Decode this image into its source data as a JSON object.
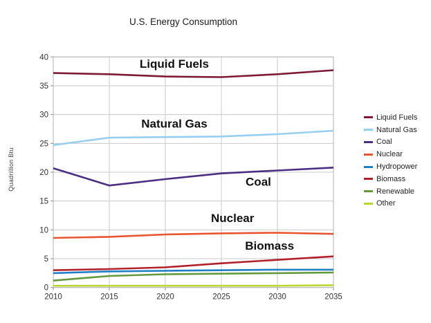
{
  "chart_data": {
    "type": "line",
    "title": "U.S. Energy Consumption",
    "xlabel": "",
    "ylabel": "Quadrillion Btu",
    "xlim": [
      2010,
      2035
    ],
    "ylim": [
      0,
      40
    ],
    "xticks": [
      2010,
      2015,
      2020,
      2025,
      2030,
      2035
    ],
    "yticks": [
      0,
      5,
      10,
      15,
      20,
      25,
      30,
      35,
      40
    ],
    "grid": true,
    "legend_position": "right",
    "x": [
      2010,
      2015,
      2020,
      2025,
      2030,
      2035
    ],
    "series": [
      {
        "name": "Liquid Fuels",
        "color": "#7D1935",
        "values": [
          37.2,
          37.0,
          36.6,
          36.5,
          37.0,
          37.7
        ]
      },
      {
        "name": "Natural Gas",
        "color": "#96CEF0",
        "values": [
          24.7,
          26.0,
          26.1,
          26.2,
          26.6,
          27.2
        ]
      },
      {
        "name": "Coal",
        "color": "#4B2D84",
        "values": [
          20.7,
          17.7,
          18.8,
          19.8,
          20.3,
          20.8
        ]
      },
      {
        "name": "Nuclear",
        "color": "#E8542E",
        "values": [
          8.6,
          8.8,
          9.2,
          9.4,
          9.5,
          9.3
        ]
      },
      {
        "name": "Hydropower",
        "color": "#1F7FC4",
        "values": [
          2.5,
          2.8,
          2.9,
          3.0,
          3.1,
          3.1
        ]
      },
      {
        "name": "Biomass",
        "color": "#B2212B",
        "values": [
          3.0,
          3.2,
          3.5,
          4.2,
          4.8,
          5.4
        ]
      },
      {
        "name": "Renewable",
        "color": "#61993B",
        "values": [
          1.2,
          2.0,
          2.3,
          2.4,
          2.5,
          2.6
        ]
      },
      {
        "name": "Other",
        "color": "#BCD531",
        "values": [
          0.3,
          0.3,
          0.3,
          0.3,
          0.3,
          0.4
        ]
      }
    ],
    "annotations": [
      {
        "text": "Liquid Fuels",
        "x": 2020.8,
        "y": 38.8
      },
      {
        "text": "Natural Gas",
        "x": 2020.8,
        "y": 28.4
      },
      {
        "text": "Coal",
        "x": 2028.3,
        "y": 18.3
      },
      {
        "text": "Nuclear",
        "x": 2026.0,
        "y": 12.0
      },
      {
        "text": "Biomass",
        "x": 2029.3,
        "y": 7.2
      }
    ],
    "style": {
      "gridline_color": "#c9c9c9",
      "border_color": "#b2b2b2",
      "tick_color": "#8c8c8c",
      "tick_label_color": "#333333",
      "annotation_color": "#111111"
    }
  }
}
